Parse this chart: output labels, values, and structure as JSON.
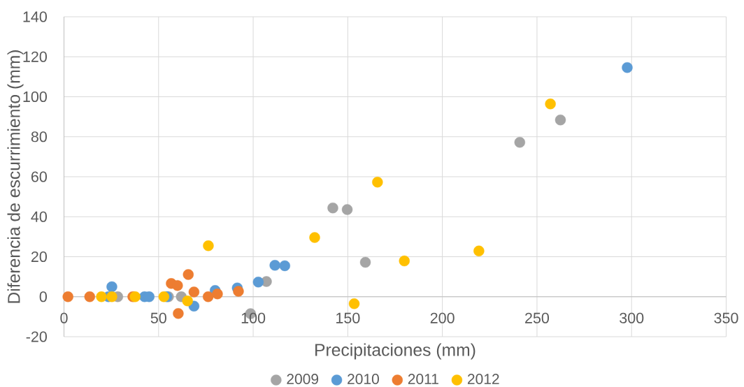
{
  "chart_data": {
    "type": "scatter",
    "xlabel": "Precipitaciones (mm)",
    "ylabel": "Diferencia de escurrimiento (mm)",
    "xlim": [
      0,
      350
    ],
    "ylim": [
      -20,
      140
    ],
    "xticks": [
      0,
      50,
      100,
      150,
      200,
      250,
      300,
      350
    ],
    "yticks": [
      -20,
      0,
      20,
      40,
      60,
      80,
      100,
      120,
      140
    ],
    "grid": true,
    "legend": "bottom",
    "marker": "circle",
    "series": [
      {
        "name": "2009",
        "color": "#a5a5a5",
        "x": [
          28.4,
          55.2,
          62.0,
          98.6,
          107.0,
          142.1,
          149.7,
          159.3,
          240.9,
          262.4
        ],
        "values": [
          0,
          0,
          0,
          -8.5,
          7.6,
          44.4,
          43.6,
          17.2,
          77.2,
          88.4
        ]
      },
      {
        "name": "2010",
        "color": "#5b9bd5",
        "x": [
          23.5,
          25.3,
          42.6,
          45.0,
          54.3,
          68.7,
          79.9,
          91.6,
          102.7,
          111.5,
          116.7,
          297.7
        ],
        "values": [
          0,
          5.0,
          0,
          0,
          0,
          -4.7,
          3.1,
          4.4,
          7.3,
          15.7,
          15.5,
          114.6
        ]
      },
      {
        "name": "2011",
        "color": "#ed7d31",
        "x": [
          2.1,
          13.6,
          36.4,
          56.7,
          60.0,
          60.4,
          65.7,
          68.7,
          76.2,
          81.1,
          92.2
        ],
        "values": [
          0,
          0,
          0,
          6.6,
          5.6,
          -8.4,
          11.1,
          2.4,
          0,
          1.4,
          2.7
        ]
      },
      {
        "name": "2012",
        "color": "#ffc000",
        "x": [
          19.8,
          25.3,
          37.6,
          52.8,
          65.3,
          76.3,
          132.5,
          153.4,
          165.7,
          179.9,
          219.3,
          257.1
        ],
        "values": [
          0,
          0,
          0,
          0,
          -2.1,
          25.5,
          29.6,
          -3.5,
          57.3,
          17.9,
          22.9,
          96.4
        ]
      }
    ]
  }
}
